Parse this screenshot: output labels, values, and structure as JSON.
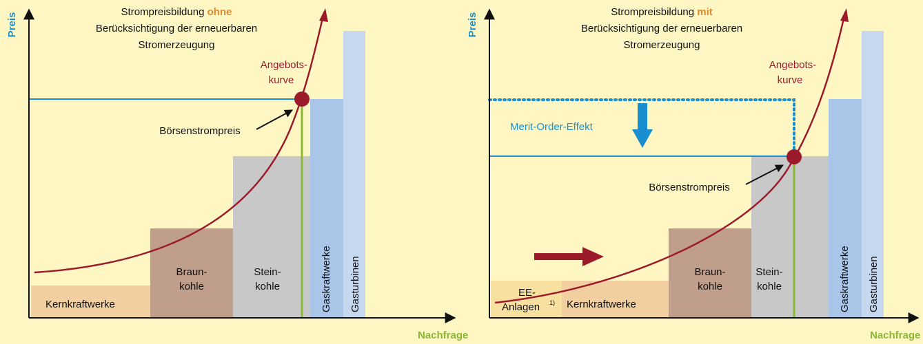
{
  "y_axis_label": "Preis",
  "x_axis_label": "Nachfrage",
  "left": {
    "title": {
      "prefix": "Strompreisbildung",
      "emphasis": "ohne",
      "line2": "Berücksichtigung der erneuerbaren",
      "line3": "Stromerzeugung"
    },
    "curve_label": [
      "Angebots-",
      "kurve"
    ],
    "price_label": "Börsenstrompreis",
    "blocks": {
      "kern": "Kernkraftwerke",
      "braun": [
        "Braun-",
        "kohle"
      ],
      "stein": [
        "Stein-",
        "kohle"
      ],
      "gas": "Gaskraftwerke",
      "turb": "Gasturbinen"
    }
  },
  "right": {
    "title": {
      "prefix": "Strompreisbildung",
      "emphasis": "mit",
      "line2": "Berücksichtigung der erneuerbaren",
      "line3": "Stromerzeugung"
    },
    "curve_label": [
      "Angebots-",
      "kurve"
    ],
    "price_label": "Börsenstrompreis",
    "effect_label": "Merit-Order-Effekt",
    "blocks": {
      "ee": [
        "EE-",
        "Anlagen"
      ],
      "ee_note": "1)",
      "kern": "Kernkraftwerke",
      "braun": [
        "Braun-",
        "kohle"
      ],
      "stein": [
        "Stein-",
        "kohle"
      ],
      "gas": "Gaskraftwerke",
      "turb": "Gasturbinen"
    }
  }
}
